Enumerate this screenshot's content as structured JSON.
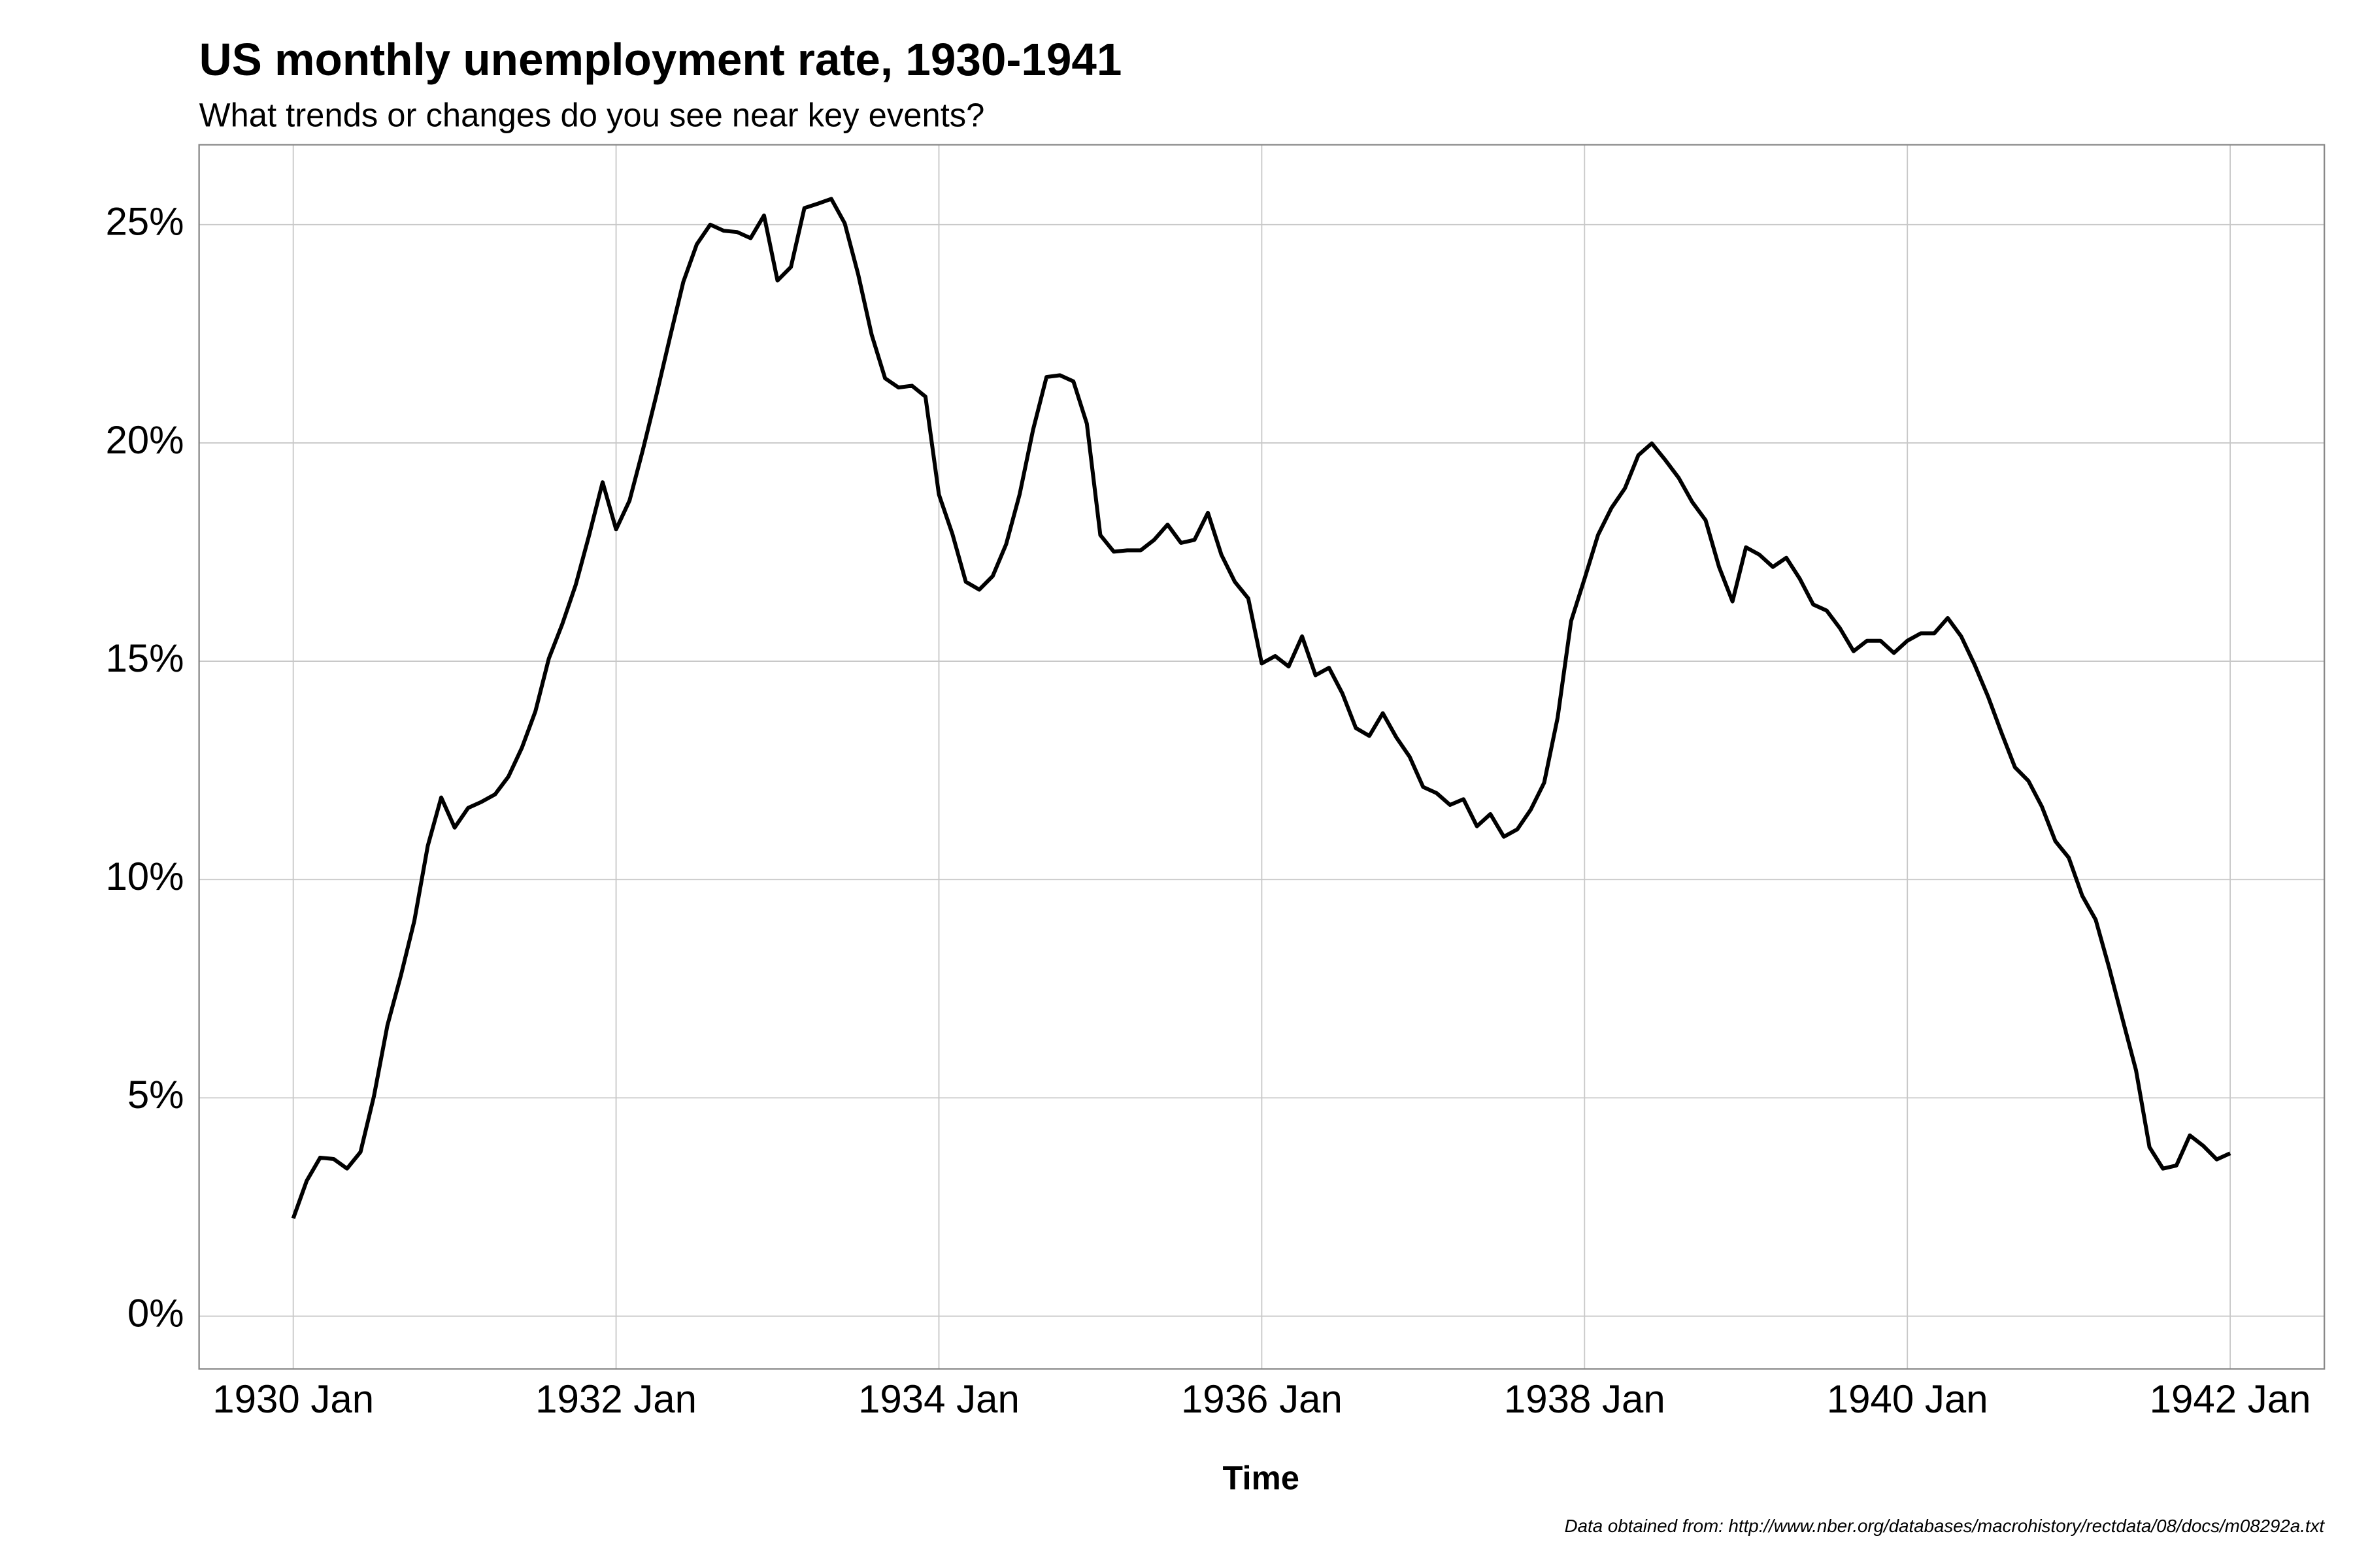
{
  "chart_data": {
    "type": "line",
    "title": "US monthly unemployment rate, 1930-1941",
    "subtitle": "What trends or changes do you see near key events?",
    "x_label": "Time",
    "caption": "Data obtained from: http://www.nber.org/databases/macrohistory/rectdata/08/docs/m08292a.txt",
    "x": [
      "1930-01",
      "1930-02",
      "1930-03",
      "1930-04",
      "1930-05",
      "1930-06",
      "1930-07",
      "1930-08",
      "1930-09",
      "1930-10",
      "1930-11",
      "1930-12",
      "1931-01",
      "1931-02",
      "1931-03",
      "1931-04",
      "1931-05",
      "1931-06",
      "1931-07",
      "1931-08",
      "1931-09",
      "1931-10",
      "1931-11",
      "1931-12",
      "1932-01",
      "1932-02",
      "1932-03",
      "1932-04",
      "1932-05",
      "1932-06",
      "1932-07",
      "1932-08",
      "1932-09",
      "1932-10",
      "1932-11",
      "1932-12",
      "1933-01",
      "1933-02",
      "1933-03",
      "1933-04",
      "1933-05",
      "1933-06",
      "1933-07",
      "1933-08",
      "1933-09",
      "1933-10",
      "1933-11",
      "1933-12",
      "1934-01",
      "1934-02",
      "1934-03",
      "1934-04",
      "1934-05",
      "1934-06",
      "1934-07",
      "1934-08",
      "1934-09",
      "1934-10",
      "1934-11",
      "1934-12",
      "1935-01",
      "1935-02",
      "1935-03",
      "1935-04",
      "1935-05",
      "1935-06",
      "1935-07",
      "1935-08",
      "1935-09",
      "1935-10",
      "1935-11",
      "1935-12",
      "1936-01",
      "1936-02",
      "1936-03",
      "1936-04",
      "1936-05",
      "1936-06",
      "1936-07",
      "1936-08",
      "1936-09",
      "1936-10",
      "1936-11",
      "1936-12",
      "1937-01",
      "1937-02",
      "1937-03",
      "1937-04",
      "1937-05",
      "1937-06",
      "1937-07",
      "1937-08",
      "1937-09",
      "1937-10",
      "1937-11",
      "1937-12",
      "1938-01",
      "1938-02",
      "1938-03",
      "1938-04",
      "1938-05",
      "1938-06",
      "1938-07",
      "1938-08",
      "1938-09",
      "1938-10",
      "1938-11",
      "1938-12",
      "1939-01",
      "1939-02",
      "1939-03",
      "1939-04",
      "1939-05",
      "1939-06",
      "1939-07",
      "1939-08",
      "1939-09",
      "1939-10",
      "1939-11",
      "1939-12",
      "1940-01",
      "1940-02",
      "1940-03",
      "1940-04",
      "1940-05",
      "1940-06",
      "1940-07",
      "1940-08",
      "1940-09",
      "1940-10",
      "1940-11",
      "1940-12",
      "1941-01",
      "1941-02",
      "1941-03",
      "1941-04",
      "1941-05",
      "1941-06",
      "1941-07",
      "1941-08",
      "1941-09",
      "1941-10",
      "1941-11",
      "1941-12",
      "1942-01"
    ],
    "series": [
      {
        "name": "Unemployment rate",
        "color": "#000000",
        "values": [
          2.24,
          3.1,
          3.63,
          3.6,
          3.38,
          3.76,
          5.04,
          6.66,
          7.8,
          9.05,
          10.77,
          11.88,
          11.19,
          11.64,
          11.78,
          11.95,
          12.36,
          13.02,
          13.85,
          15.06,
          15.85,
          16.75,
          17.89,
          19.1,
          18.02,
          18.68,
          19.85,
          21.1,
          22.41,
          23.69,
          24.55,
          25.0,
          24.86,
          24.83,
          24.69,
          25.21,
          23.72,
          24.03,
          25.38,
          25.48,
          25.59,
          25.03,
          23.86,
          22.48,
          21.48,
          21.27,
          21.31,
          21.06,
          18.82,
          17.92,
          16.82,
          16.64,
          16.95,
          17.68,
          18.82,
          20.3,
          21.51,
          21.55,
          21.41,
          20.44,
          17.89,
          17.51,
          17.54,
          17.54,
          17.78,
          18.13,
          17.71,
          17.78,
          18.4,
          17.44,
          16.82,
          16.44,
          14.95,
          15.12,
          14.88,
          15.57,
          14.68,
          14.85,
          14.26,
          13.47,
          13.29,
          13.81,
          13.26,
          12.81,
          12.12,
          11.98,
          11.71,
          11.84,
          11.22,
          11.5,
          10.98,
          11.15,
          11.6,
          12.22,
          13.71,
          15.92,
          16.89,
          17.89,
          18.51,
          18.96,
          19.72,
          19.99,
          19.61,
          19.2,
          18.65,
          18.23,
          17.16,
          16.37,
          17.61,
          17.44,
          17.16,
          17.37,
          16.89,
          16.3,
          16.16,
          15.75,
          15.23,
          15.47,
          15.47,
          15.19,
          15.47,
          15.64,
          15.64,
          15.99,
          15.57,
          14.92,
          14.19,
          13.36,
          12.57,
          12.26,
          11.67,
          10.88,
          10.5,
          9.63,
          9.08,
          7.98,
          6.8,
          5.63,
          3.87,
          3.38,
          3.45,
          4.14,
          3.9,
          3.59,
          3.73
        ]
      }
    ],
    "xlim": [
      "1929-06",
      "1942-08"
    ],
    "xticks": [
      {
        "value": "1930-01",
        "label": "1930 Jan"
      },
      {
        "value": "1932-01",
        "label": "1932 Jan"
      },
      {
        "value": "1934-01",
        "label": "1934 Jan"
      },
      {
        "value": "1936-01",
        "label": "1936 Jan"
      },
      {
        "value": "1938-01",
        "label": "1938 Jan"
      },
      {
        "value": "1940-01",
        "label": "1940 Jan"
      },
      {
        "value": "1942-01",
        "label": "1942 Jan"
      }
    ],
    "ylim": [
      -1.21,
      26.83
    ],
    "yticks": [
      {
        "value": 0,
        "label": "0%"
      },
      {
        "value": 5,
        "label": "5%"
      },
      {
        "value": 10,
        "label": "10%"
      },
      {
        "value": 15,
        "label": "15%"
      },
      {
        "value": 20,
        "label": "20%"
      },
      {
        "value": 25,
        "label": "25%"
      }
    ],
    "grid": true
  }
}
